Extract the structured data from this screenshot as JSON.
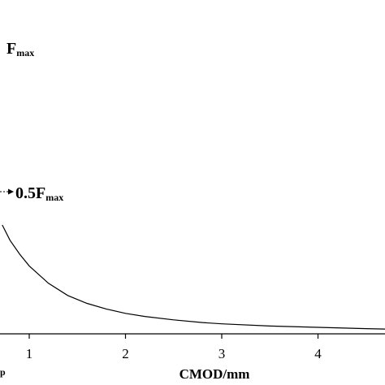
{
  "chart_data": {
    "type": "line",
    "title": "",
    "xlabel": "CMOD/mm",
    "ylabel": "",
    "xlim": [
      0.72,
      4.7
    ],
    "ylim": [
      0,
      1
    ],
    "x_ticks": [
      "1",
      "2",
      "3",
      "4"
    ],
    "x_tick_values": [
      1,
      2,
      3,
      4
    ],
    "grid": false,
    "series": [
      {
        "x": [
          0.72,
          0.8,
          0.9,
          1.0,
          1.2,
          1.4,
          1.6,
          1.8,
          2.0,
          2.2,
          2.5,
          2.8,
          3.0,
          3.5,
          4.0,
          4.5,
          4.7
        ],
        "y": [
          0.5,
          0.43,
          0.366,
          0.312,
          0.232,
          0.176,
          0.14,
          0.114,
          0.094,
          0.08,
          0.064,
          0.052,
          0.046,
          0.036,
          0.03,
          0.024,
          0.022
        ]
      }
    ],
    "annotations": [
      {
        "id": "fmax",
        "main": "F",
        "sub": "max"
      },
      {
        "id": "half_fmax",
        "main": "0.5F",
        "sub": "max",
        "arrow": true
      },
      {
        "id": "partial_label",
        "sub": "p"
      }
    ],
    "colors": {
      "line": "#000000",
      "axis": "#000000",
      "background": "#ffffff"
    }
  }
}
